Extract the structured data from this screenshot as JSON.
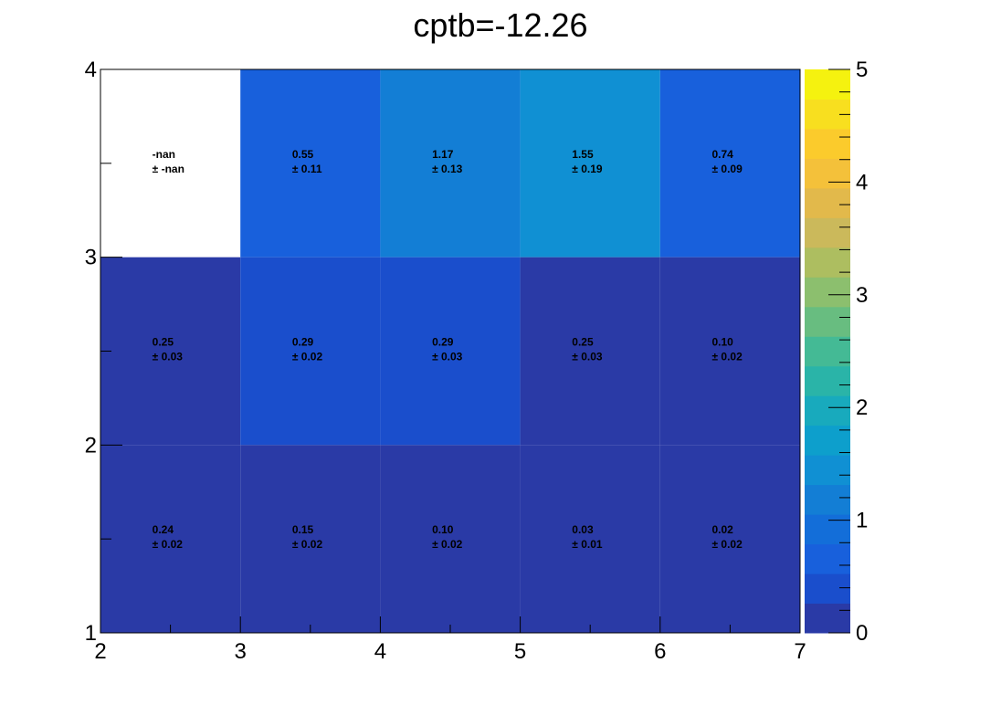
{
  "chart_data": {
    "type": "heatmap",
    "title": "cptb=-12.26",
    "xlabel": "",
    "ylabel": "",
    "xlim": [
      2,
      7
    ],
    "ylim": [
      1,
      4
    ],
    "x_bin_edges": [
      2,
      3,
      4,
      5,
      6,
      7
    ],
    "y_bin_edges": [
      1,
      2,
      3,
      4
    ],
    "x_tick_labels": [
      "2",
      "3",
      "4",
      "5",
      "6",
      "7"
    ],
    "y_tick_labels": [
      "1",
      "2",
      "3",
      "4"
    ],
    "colorbar": {
      "range": [
        0,
        5
      ],
      "tick_labels": [
        "0",
        "1",
        "2",
        "3",
        "4",
        "5"
      ],
      "palette": [
        "#2a3aa6",
        "#1a4ecc",
        "#1860dc",
        "#136ed9",
        "#137ed5",
        "#1090d3",
        "#0d9fcc",
        "#18aabd",
        "#2ab4a8",
        "#44ba95",
        "#68bd80",
        "#8cbf6e",
        "#adbe60",
        "#cbb95b",
        "#e2b94b",
        "#f4c13a",
        "#fbcb2c",
        "#f8df1f",
        "#f5f20f"
      ]
    },
    "cells": [
      {
        "x": 2.5,
        "y": 3.5,
        "value": null,
        "value_text": "-nan",
        "error_text": "± -nan"
      },
      {
        "x": 3.5,
        "y": 3.5,
        "value": 0.55,
        "value_text": "0.55",
        "error_text": "± 0.11"
      },
      {
        "x": 4.5,
        "y": 3.5,
        "value": 1.17,
        "value_text": "1.17",
        "error_text": "± 0.13"
      },
      {
        "x": 5.5,
        "y": 3.5,
        "value": 1.55,
        "value_text": "1.55",
        "error_text": "± 0.19"
      },
      {
        "x": 6.5,
        "y": 3.5,
        "value": 0.74,
        "value_text": "0.74",
        "error_text": "± 0.09"
      },
      {
        "x": 2.5,
        "y": 2.5,
        "value": 0.25,
        "value_text": "0.25",
        "error_text": "± 0.03"
      },
      {
        "x": 3.5,
        "y": 2.5,
        "value": 0.29,
        "value_text": "0.29",
        "error_text": "± 0.02"
      },
      {
        "x": 4.5,
        "y": 2.5,
        "value": 0.29,
        "value_text": "0.29",
        "error_text": "± 0.03"
      },
      {
        "x": 5.5,
        "y": 2.5,
        "value": 0.25,
        "value_text": "0.25",
        "error_text": "± 0.03"
      },
      {
        "x": 6.5,
        "y": 2.5,
        "value": 0.1,
        "value_text": "0.10",
        "error_text": "± 0.02"
      },
      {
        "x": 2.5,
        "y": 1.5,
        "value": 0.24,
        "value_text": "0.24",
        "error_text": "± 0.02"
      },
      {
        "x": 3.5,
        "y": 1.5,
        "value": 0.15,
        "value_text": "0.15",
        "error_text": "± 0.02"
      },
      {
        "x": 4.5,
        "y": 1.5,
        "value": 0.1,
        "value_text": "0.10",
        "error_text": "± 0.02"
      },
      {
        "x": 5.5,
        "y": 1.5,
        "value": 0.03,
        "value_text": "0.03",
        "error_text": "± 0.01"
      },
      {
        "x": 6.5,
        "y": 1.5,
        "value": 0.02,
        "value_text": "0.02",
        "error_text": "± 0.02"
      }
    ]
  }
}
